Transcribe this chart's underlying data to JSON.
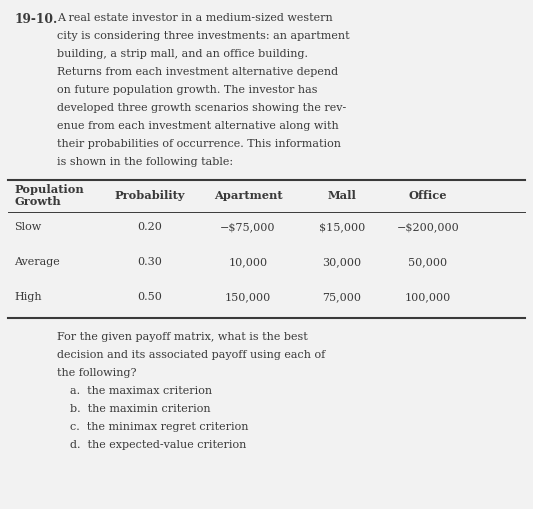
{
  "problem_number": "19-10.",
  "intro_text": [
    "A real estate investor in a medium-sized western",
    "city is considering three investments: an apartment",
    "building, a strip mall, and an office building.",
    "Returns from each investment alternative depend",
    "on future population growth. The investor has",
    "developed three growth scenarios showing the rev-",
    "enue from each investment alternative along with",
    "their probabilities of occurrence. This information",
    "is shown in the following table:"
  ],
  "header_col0_line1": "Population",
  "header_col0_line2": "Growth",
  "header_others": [
    "Probability",
    "Apartment",
    "Mall",
    "Office"
  ],
  "table_rows": [
    [
      "Slow",
      "0.20",
      "−$75,000",
      "$15,000",
      "−$200,000"
    ],
    [
      "Average",
      "0.30",
      "10,000",
      "30,000",
      "50,000"
    ],
    [
      "High",
      "0.50",
      "150,000",
      "75,000",
      "100,000"
    ]
  ],
  "footer_para": [
    "For the given payoff matrix, what is the best",
    "decision and its associated payoff using each of",
    "the following?"
  ],
  "footer_list": [
    "a.  the maximax criterion",
    "b.  the maximin criterion",
    "c.  the minimax regret criterion",
    "d.  the expected-value criterion"
  ],
  "bg_color": "#f2f2f2",
  "text_color": "#3a3a3a",
  "font_family": "DejaVu Serif",
  "fs_body": 8.0,
  "fs_bold": 8.2,
  "fs_problem": 8.8
}
